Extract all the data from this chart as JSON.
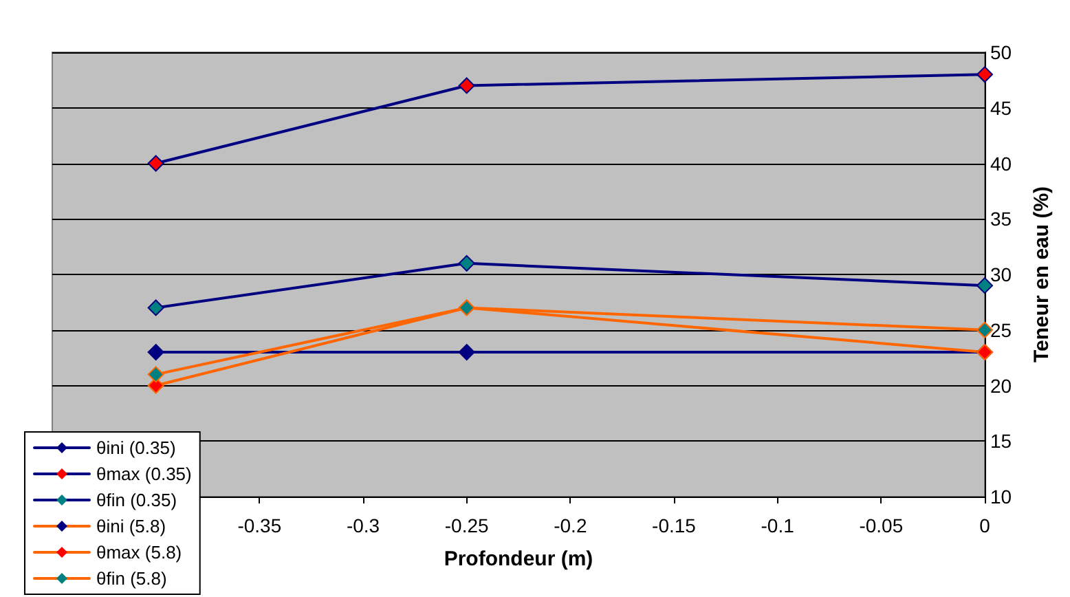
{
  "chart_data": {
    "type": "line",
    "xlabel": "Profondeur (m)",
    "ylabel": "Teneur en eau (%)",
    "x": [
      -0.4,
      -0.25,
      0
    ],
    "xlim": [
      -0.45,
      0
    ],
    "xticks": [
      -0.35,
      -0.3,
      -0.25,
      -0.2,
      -0.15,
      -0.1,
      -0.05,
      0
    ],
    "ylim": [
      10,
      50
    ],
    "yticks": [
      10,
      15,
      20,
      25,
      30,
      35,
      40,
      45,
      50
    ],
    "grid": "y",
    "legend": "bottom left",
    "marker": "diamond",
    "line_style": "solid",
    "series": [
      {
        "name": "θini (0.35)",
        "color": "#000080",
        "colors": [
          "#000080",
          "#000080",
          "#000080"
        ],
        "values": [
          23,
          23,
          23
        ]
      },
      {
        "name": "θmax (0.35)",
        "color": "#000080",
        "colors": [
          "#ff0000",
          "#ff0000",
          "#ff0000"
        ],
        "values": [
          40,
          47,
          48
        ]
      },
      {
        "name": "θfin (0.35)",
        "color": "#000080",
        "colors": [
          "#008080",
          "#008080",
          "#008080"
        ],
        "values": [
          27,
          31,
          29
        ]
      },
      {
        "name": "θini (5.8)",
        "color": "#ff6600",
        "colors": [
          "#000080",
          "#000080",
          "#000080"
        ],
        "values": [
          null,
          null,
          null
        ]
      },
      {
        "name": "θmax (5.8)",
        "color": "#ff6600",
        "colors": [
          "#ff0000",
          "#ff0000",
          "#ff0000"
        ],
        "values": [
          20,
          27,
          23
        ]
      },
      {
        "name": "θfin (5.8)",
        "color": "#ff6600",
        "colors": [
          "#008080",
          "#008080",
          "#008080"
        ],
        "values": [
          21,
          27,
          25
        ]
      }
    ]
  }
}
